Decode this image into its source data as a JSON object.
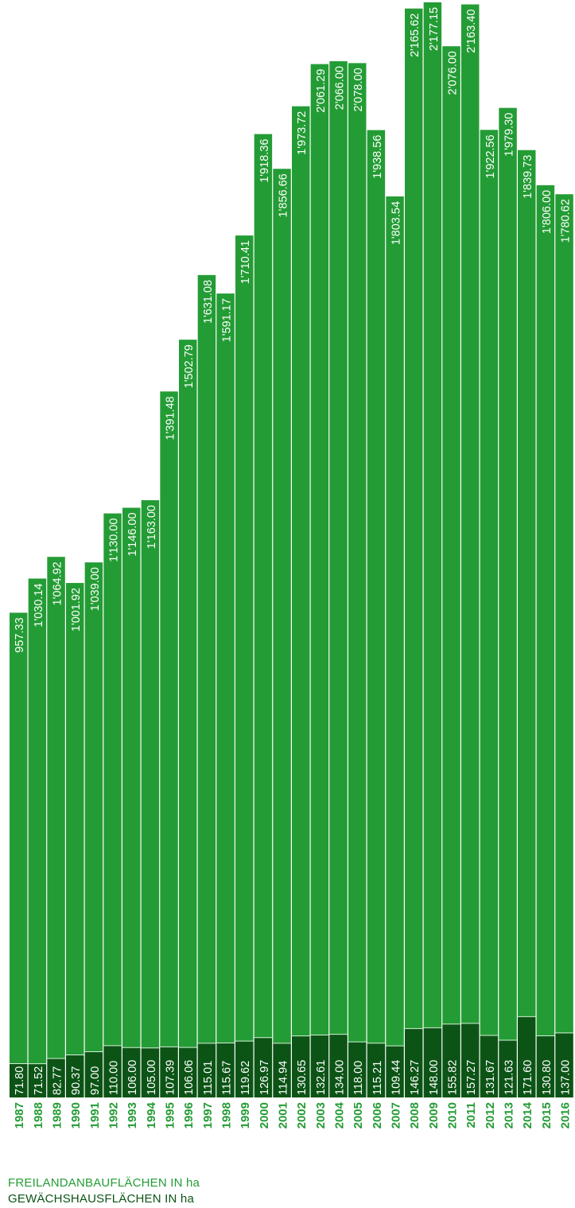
{
  "colors": {
    "open_field": "#249c35",
    "greenhouse": "#0c5416",
    "bar_text": "#ffffff",
    "year_text": "#249c35",
    "legend_open": "#249c35",
    "legend_greenhouse": "#0c5416",
    "separator": "#d7efd9"
  },
  "legend": {
    "open_field": "FREILANDANBAUFLÄCHEN IN ha",
    "greenhouse": "GEWÄCHSHAUSFLÄCHEN IN ha"
  },
  "chart_data": {
    "type": "bar",
    "stacked": true,
    "title": "",
    "xlabel": "",
    "ylabel": "",
    "ylim": [
      0,
      2330
    ],
    "categories": [
      "1987",
      "1988",
      "1989",
      "1990",
      "1991",
      "1992",
      "1993",
      "1994",
      "1995",
      "1996",
      "1997",
      "1998",
      "1999",
      "2000",
      "2001",
      "2002",
      "2003",
      "2004",
      "2005",
      "2006",
      "2007",
      "2008",
      "2009",
      "2010",
      "2011",
      "2012",
      "2013",
      "2014",
      "2015",
      "2016"
    ],
    "series": [
      {
        "name": "GEWÄCHSHAUSFLÄCHEN IN ha",
        "values": [
          71.8,
          71.52,
          82.77,
          90.37,
          97.0,
          110.0,
          106.0,
          105.0,
          107.39,
          106.06,
          115.01,
          115.67,
          119.62,
          126.97,
          114.94,
          130.65,
          132.61,
          134.0,
          118.0,
          115.21,
          109.44,
          146.27,
          148.0,
          155.82,
          157.27,
          131.67,
          121.63,
          171.6,
          130.8,
          137.0
        ],
        "labels": [
          "71.80",
          "71.52",
          "82.77",
          "90.37",
          "97.00",
          "110.00",
          "106.00",
          "105.00",
          "107.39",
          "106.06",
          "115.01",
          "115.67",
          "119.62",
          "126.97",
          "114.94",
          "130.65",
          "132.61",
          "134.00",
          "118.00",
          "115.21",
          "109.44",
          "146.27",
          "148.00",
          "155.82",
          "157.27",
          "131.67",
          "121.63",
          "171.60",
          "130.80",
          "137.00"
        ]
      },
      {
        "name": "FREILANDANBAUFLÄCHEN IN ha",
        "values": [
          957.33,
          1030.14,
          1064.92,
          1001.92,
          1039.0,
          1130.0,
          1146.0,
          1163.0,
          1391.48,
          1502.79,
          1631.08,
          1591.17,
          1710.41,
          1918.36,
          1856.66,
          1973.72,
          2061.29,
          2066.0,
          2078.0,
          1938.56,
          1803.54,
          2165.62,
          2177.15,
          2076.0,
          2163.4,
          1922.56,
          1979.3,
          1839.73,
          1806.0,
          1780.62
        ],
        "labels": [
          "957.33",
          "1'030.14",
          "1'064.92",
          "1'001.92",
          "1'039.00",
          "1'130.00",
          "1'146.00",
          "1'163.00",
          "1'391.48",
          "1'502.79",
          "1'631.08",
          "1'591.17",
          "1'710.41",
          "1'918.36",
          "1'856.66",
          "1'973.72",
          "2'061.29",
          "2'066.00",
          "2'078.00",
          "1'938.56",
          "1'803.54",
          "2'165.62",
          "2'177.15",
          "2'076.00",
          "2'163.40",
          "1'922.56",
          "1'979.30",
          "1'839.73",
          "1'806.00",
          "1'780.62"
        ]
      }
    ]
  }
}
